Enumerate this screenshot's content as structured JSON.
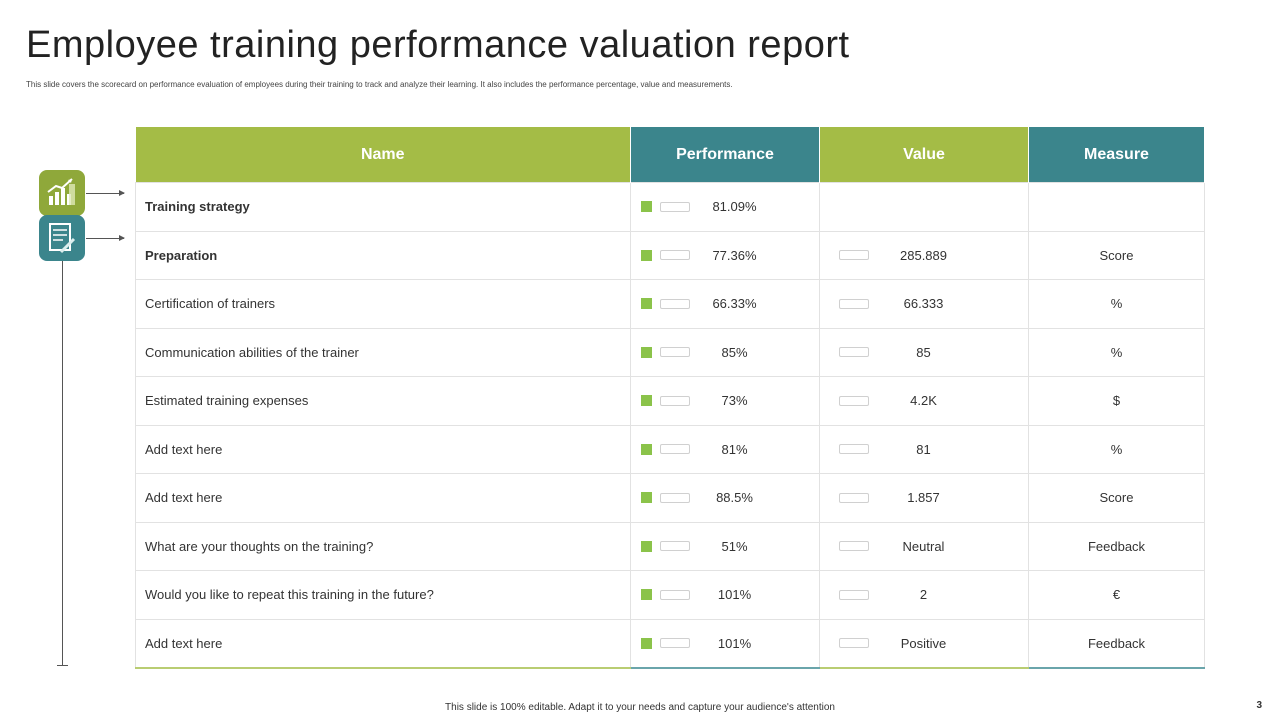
{
  "title": "Employee training performance valuation report",
  "subtitle": "This slide covers the scorecard on performance evaluation of employees during their training to track and analyze their learning.  It also includes the performance percentage, value and measurements.",
  "footer": "This slide is 100% editable. Adapt it to your needs and capture your audience's attention",
  "page_number": "3",
  "icons": [
    "growth-chart-icon",
    "checklist-pen-icon"
  ],
  "table": {
    "headers": [
      "Name",
      "Performance",
      "Value",
      "Measure"
    ],
    "rows": [
      {
        "name": "Training strategy",
        "performance": "81.09%",
        "value": "",
        "measure": ""
      },
      {
        "name": "Preparation",
        "performance": "77.36%",
        "value": "285.889",
        "measure": "Score"
      },
      {
        "name": "Certification  of trainers",
        "performance": "66.33%",
        "value": "66.333",
        "measure": "%"
      },
      {
        "name": "Communication  abilities of the trainer",
        "performance": "85%",
        "value": "85",
        "measure": "%"
      },
      {
        "name": "Estimated training expenses",
        "performance": "73%",
        "value": "4.2K",
        "measure": "$"
      },
      {
        "name": "Add text here",
        "performance": "81%",
        "value": "81",
        "measure": "%"
      },
      {
        "name": "Add text here",
        "performance": "88.5%",
        "value": "1.857",
        "measure": "Score"
      },
      {
        "name": "What are your thoughts on the training?",
        "performance": "51%",
        "value": "Neutral",
        "measure": "Feedback"
      },
      {
        "name": "Would you like to repeat this training in the future?",
        "performance": "101%",
        "value": "2",
        "measure": "€"
      },
      {
        "name": "Add text here",
        "performance": "101%",
        "value": "Positive",
        "measure": "Feedback"
      }
    ]
  }
}
